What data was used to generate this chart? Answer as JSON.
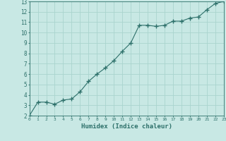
{
  "x": [
    0,
    1,
    2,
    3,
    4,
    5,
    6,
    7,
    8,
    9,
    10,
    11,
    12,
    13,
    14,
    15,
    16,
    17,
    18,
    19,
    20,
    21,
    22,
    23
  ],
  "y": [
    2.0,
    3.3,
    3.3,
    3.1,
    3.5,
    3.6,
    4.3,
    5.3,
    6.0,
    6.6,
    7.3,
    8.2,
    9.0,
    10.7,
    10.7,
    10.6,
    10.7,
    11.1,
    11.1,
    11.4,
    11.5,
    12.2,
    12.8,
    13.0
  ],
  "xlabel": "Humidex (Indice chaleur)",
  "xlim": [
    0,
    23
  ],
  "ylim": [
    2,
    13
  ],
  "yticks": [
    2,
    3,
    4,
    5,
    6,
    7,
    8,
    9,
    10,
    11,
    12,
    13
  ],
  "xticks": [
    0,
    1,
    2,
    3,
    4,
    5,
    6,
    7,
    8,
    9,
    10,
    11,
    12,
    13,
    14,
    15,
    16,
    17,
    18,
    19,
    20,
    21,
    22,
    23
  ],
  "line_color": "#2d706a",
  "marker_color": "#2d706a",
  "bg_color": "#c8e8e4",
  "grid_color": "#aad4ce",
  "axis_color": "#2d706a",
  "label_color": "#2d706a",
  "tick_label_color": "#2d706a",
  "font_name": "monospace"
}
